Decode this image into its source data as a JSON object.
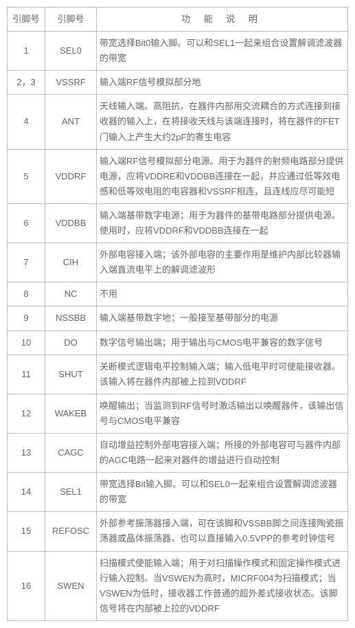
{
  "headers": {
    "pin": "引脚号",
    "name": "引脚号",
    "desc": "功 能 说 明"
  },
  "rows": [
    {
      "pin": "1",
      "name": "SEL0",
      "desc": "带宽选择Bit0输入脚。可以和SEL1一起来组合设置解调滤波器的带宽"
    },
    {
      "pin": "2，3",
      "name": "VSSRF",
      "desc": "输入端RF信号模拟部分地"
    },
    {
      "pin": "4",
      "name": "ANT",
      "desc": "天线输入端。高阻抗，在器件内部用交流耦合的方式连接到接收器的输入上，在将接收天线与该端连接时，将在器件的FET门输入上产生大约2pF的寄生电容"
    },
    {
      "pin": "5",
      "name": "VDDRF",
      "desc": "输入端RF信号模拟部分电源。用于为器件的射频电路部分提供电源，应将VDDRE和VDDBB连接在一起，并应通过低等效电感和低等效电阻的电容器和VSSRF相连，且连线应尽可能短"
    },
    {
      "pin": "6",
      "name": "VDDBB",
      "desc": "输入端基带数字电源；用于为器件的基带电路部分提供电源。使用时，应将VDDRF和VDDBB连接在一起"
    },
    {
      "pin": "7",
      "name": "CIH",
      "desc": "外部电容接入端；该外部电容的主要作用是维护内部比较器输入端直流电平上的解调滤波形"
    },
    {
      "pin": "8",
      "name": "NC",
      "desc": "不用"
    },
    {
      "pin": "9",
      "name": "NSSBB",
      "desc": "输入端基带数字地；一般接至基带部分的电源"
    },
    {
      "pin": "10",
      "name": "DO",
      "desc": "数字信号输出端；用于输出与CMOS电平兼容的数字信号"
    },
    {
      "pin": "11",
      "name": "SHUT",
      "desc": "关断模式逻辑电平控制输入端；输入低电平时可使能接收器。该输入将在器件内部被上拉到VDDRF"
    },
    {
      "pin": "12",
      "name": "WAKEB",
      "desc": "唤醒输出；当监测到RF信号时激活输出以唤醒器件，该输出信号与CMOS电平兼容"
    },
    {
      "pin": "13",
      "name": "CAGC",
      "desc": "自动增益控制外部电容接入端；所接的外部电容可与器件内部的AGC电路一起来对器件的增益进行自动控制"
    },
    {
      "pin": "14",
      "name": "SEL1",
      "desc": "带宽选择Bit输入脚。可以和SEL0一起来组合设置解调滤波器的带宽"
    },
    {
      "pin": "15",
      "name": "REFOSC",
      "desc": "外部参考振荡器接入端，可在该脚和VSSBB脚之间连接陶瓷振荡器或晶体振荡器，也可以直接输入0.5VPP的参考时钟信号"
    },
    {
      "pin": "16",
      "name": "SWEN",
      "desc": "扫描模式使能输入端；用于对扫描操作模式和固定操作模式进行输入控制。当VSWEN为高时，MICRF004为扫描模式；当VSWEN为低时，接收器工作普通的超外差式接收状态。该脚信号将在内部被上拉的VDDRF"
    }
  ]
}
